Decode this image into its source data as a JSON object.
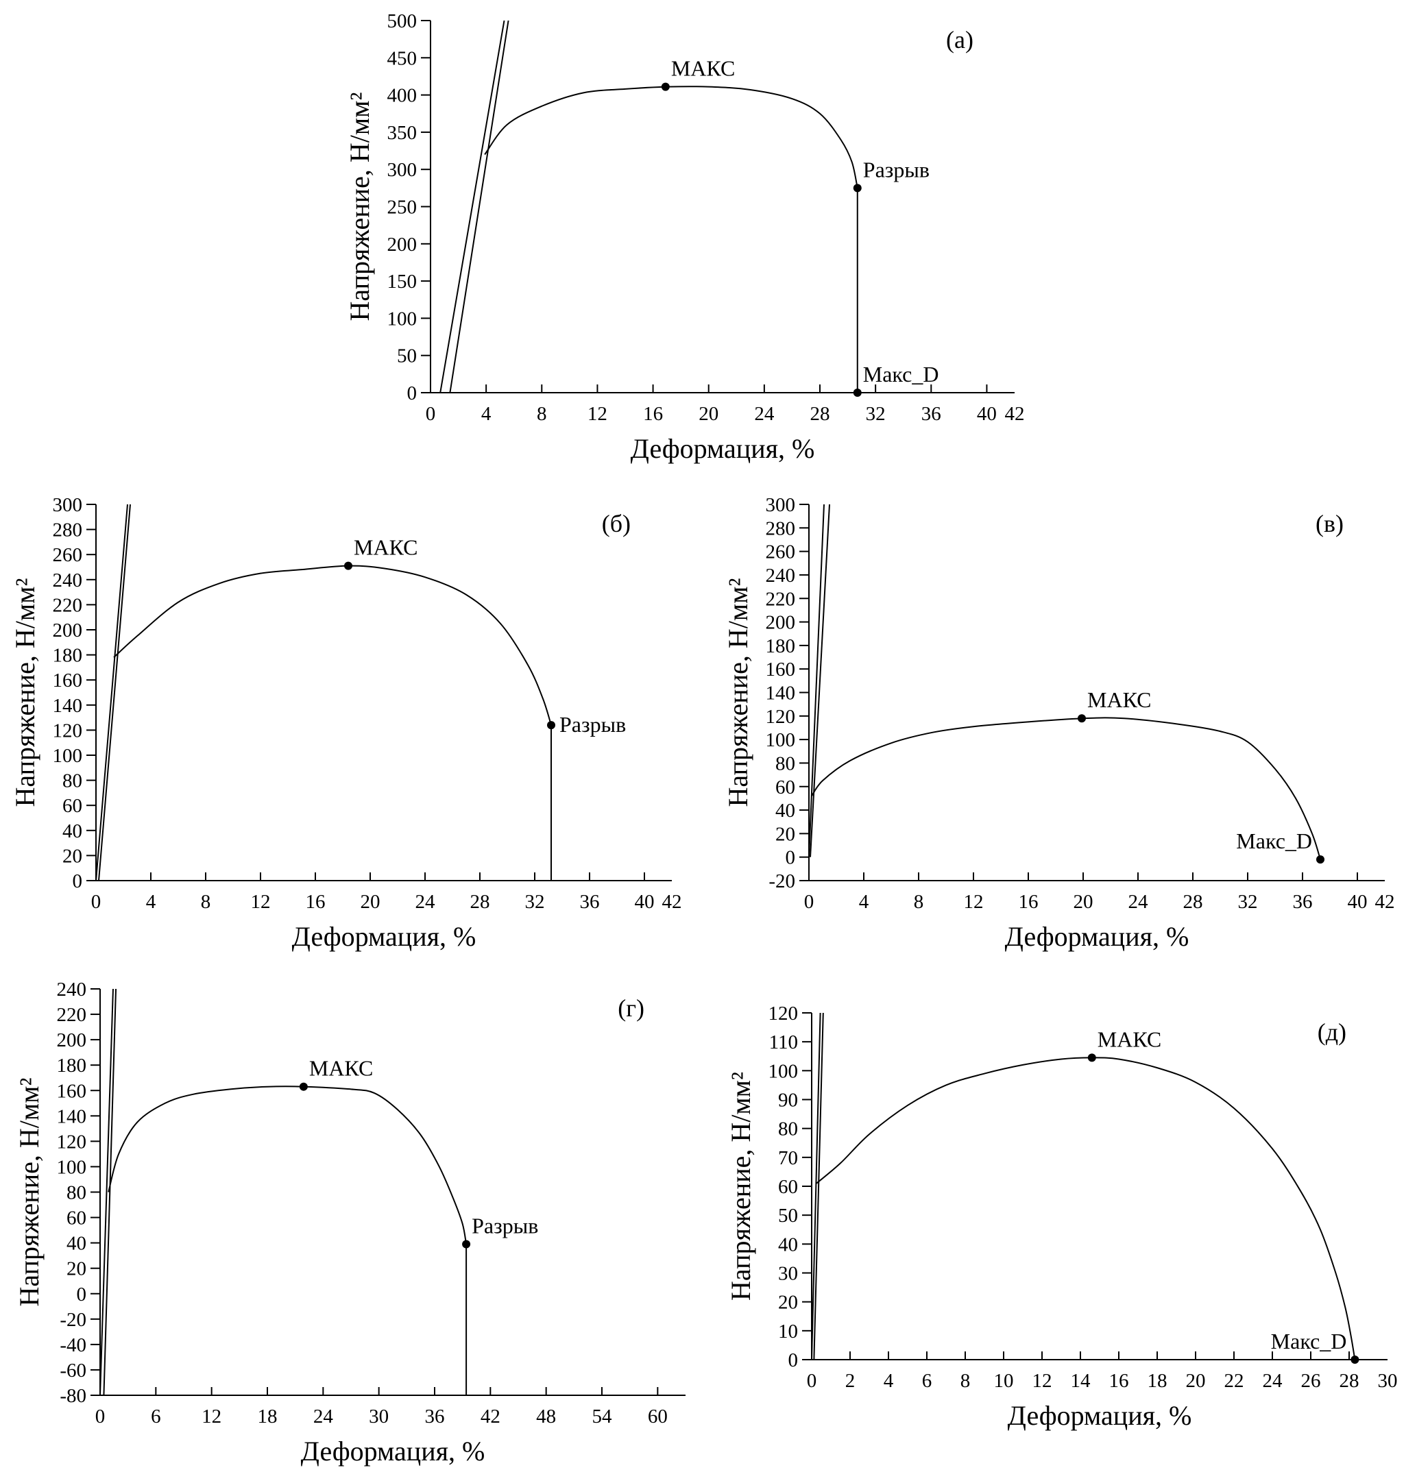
{
  "chart_data": [
    {
      "id": "a",
      "type": "line",
      "panel_label": "(a)",
      "xlabel": "Деформация, %",
      "ylabel": "Напряжение, Н/мм²",
      "xlim": [
        0,
        42
      ],
      "ylim": [
        0,
        500
      ],
      "xticks": [
        0,
        4,
        8,
        12,
        16,
        20,
        24,
        28,
        32,
        36,
        40,
        42
      ],
      "yticks": [
        0,
        50,
        100,
        150,
        200,
        250,
        300,
        350,
        400,
        450,
        500
      ],
      "grid": false,
      "elastic_lines": [
        [
          [
            0.7,
            0
          ],
          [
            5.3,
            500
          ]
        ],
        [
          [
            1.4,
            0
          ],
          [
            5.6,
            500
          ]
        ]
      ],
      "curve": [
        [
          3.9,
          320
        ],
        [
          5.5,
          360
        ],
        [
          8,
          385
        ],
        [
          11,
          403
        ],
        [
          14,
          408
        ],
        [
          17,
          411
        ],
        [
          20,
          411
        ],
        [
          23,
          407
        ],
        [
          26,
          395
        ],
        [
          28,
          375
        ],
        [
          29.5,
          340
        ],
        [
          30.3,
          310
        ],
        [
          30.7,
          275
        ]
      ],
      "drop": [
        [
          30.7,
          275
        ],
        [
          30.7,
          0
        ]
      ],
      "points": [
        {
          "x": 16.9,
          "y": 411,
          "label": "МАКС",
          "pos": "above-right"
        },
        {
          "x": 30.7,
          "y": 275,
          "label": "Разрыв",
          "pos": "above-right"
        },
        {
          "x": 30.7,
          "y": 0,
          "label": "Макс_D",
          "pos": "above-right"
        }
      ]
    },
    {
      "id": "b",
      "type": "line",
      "panel_label": "(б)",
      "xlabel": "Деформация, %",
      "ylabel": "Напряжение, Н/мм²",
      "xlim": [
        0,
        42
      ],
      "ylim": [
        0,
        300
      ],
      "xticks": [
        0,
        4,
        8,
        12,
        16,
        20,
        24,
        28,
        32,
        36,
        40,
        42
      ],
      "yticks": [
        0,
        20,
        40,
        60,
        80,
        100,
        120,
        140,
        160,
        180,
        200,
        220,
        240,
        260,
        280,
        300
      ],
      "grid": false,
      "elastic_lines": [
        [
          [
            0,
            0
          ],
          [
            2.3,
            300
          ]
        ],
        [
          [
            0.2,
            0
          ],
          [
            2.5,
            300
          ]
        ]
      ],
      "curve": [
        [
          1.3,
          178
        ],
        [
          3,
          195
        ],
        [
          6,
          222
        ],
        [
          9,
          237
        ],
        [
          12,
          245
        ],
        [
          15,
          248
        ],
        [
          18.4,
          251
        ],
        [
          21,
          249
        ],
        [
          24,
          242
        ],
        [
          27,
          228
        ],
        [
          29.5,
          205
        ],
        [
          31.5,
          172
        ],
        [
          32.6,
          145
        ],
        [
          33.2,
          124
        ]
      ],
      "drop": [
        [
          33.2,
          124
        ],
        [
          33.2,
          0
        ]
      ],
      "points": [
        {
          "x": 18.4,
          "y": 251,
          "label": "МАКС",
          "pos": "above-right"
        },
        {
          "x": 33.2,
          "y": 124,
          "label": "Разрыв",
          "pos": "right"
        }
      ]
    },
    {
      "id": "v",
      "type": "line",
      "panel_label": "(в)",
      "xlabel": "Деформация, %",
      "ylabel": "Напряжение, Н/мм²",
      "xlim": [
        0,
        42
      ],
      "ylim": [
        -20,
        300
      ],
      "xticks": [
        0,
        4,
        8,
        12,
        16,
        20,
        24,
        28,
        32,
        36,
        40,
        42
      ],
      "yticks": [
        -20,
        0,
        20,
        40,
        60,
        80,
        100,
        120,
        140,
        160,
        180,
        200,
        220,
        240,
        260,
        280,
        300
      ],
      "grid": false,
      "elastic_lines": [
        [
          [
            0,
            0
          ],
          [
            1.1,
            300
          ]
        ],
        [
          [
            0.1,
            0
          ],
          [
            1.5,
            300
          ]
        ]
      ],
      "curve": [
        [
          0.2,
          52
        ],
        [
          1,
          65
        ],
        [
          3,
          82
        ],
        [
          6,
          97
        ],
        [
          9,
          106
        ],
        [
          12,
          111
        ],
        [
          16,
          115
        ],
        [
          20,
          118
        ],
        [
          23,
          118
        ],
        [
          27,
          113
        ],
        [
          30,
          107
        ],
        [
          32,
          98
        ],
        [
          34,
          75
        ],
        [
          35.5,
          50
        ],
        [
          36.7,
          20
        ],
        [
          37.3,
          -2
        ]
      ],
      "drop": [],
      "points": [
        {
          "x": 19.9,
          "y": 118,
          "label": "МАКС",
          "pos": "above-right"
        },
        {
          "x": 37.3,
          "y": -2,
          "label": "Макс_D",
          "pos": "above-left"
        }
      ]
    },
    {
      "id": "g",
      "type": "line",
      "panel_label": "(г)",
      "xlabel": "Деформация, %",
      "ylabel": "Напряжение, Н/мм²",
      "xlim": [
        0,
        63
      ],
      "ylim": [
        -80,
        240
      ],
      "xticks": [
        0,
        6,
        12,
        18,
        24,
        30,
        36,
        42,
        48,
        54,
        60
      ],
      "yticks": [
        -80,
        -60,
        -40,
        -20,
        0,
        20,
        40,
        60,
        80,
        100,
        120,
        140,
        160,
        180,
        200,
        220,
        240
      ],
      "grid": false,
      "elastic_lines": [
        [
          [
            0,
            -80
          ],
          [
            1.4,
            240
          ]
        ],
        [
          [
            0.4,
            -80
          ],
          [
            1.7,
            240
          ]
        ]
      ],
      "curve": [
        [
          0.9,
          80
        ],
        [
          2,
          110
        ],
        [
          4,
          135
        ],
        [
          7,
          150
        ],
        [
          10,
          157
        ],
        [
          14,
          161
        ],
        [
          18,
          163
        ],
        [
          22,
          163
        ],
        [
          27,
          161
        ],
        [
          29.5,
          158
        ],
        [
          32,
          145
        ],
        [
          34.5,
          125
        ],
        [
          36.5,
          100
        ],
        [
          38,
          75
        ],
        [
          39,
          55
        ],
        [
          39.4,
          39
        ]
      ],
      "drop": [
        [
          39.4,
          39
        ],
        [
          39.4,
          -80
        ]
      ],
      "points": [
        {
          "x": 21.9,
          "y": 163,
          "label": "МАКС",
          "pos": "above-right"
        },
        {
          "x": 39.4,
          "y": 39,
          "label": "Разрыв",
          "pos": "above-right"
        }
      ]
    },
    {
      "id": "d",
      "type": "line",
      "panel_label": "(д)",
      "xlabel": "Деформация, %",
      "ylabel": "Напряжение, Н/мм²",
      "xlim": [
        0,
        30
      ],
      "ylim": [
        0,
        120
      ],
      "xticks": [
        0,
        2,
        4,
        6,
        8,
        10,
        12,
        14,
        16,
        18,
        20,
        22,
        24,
        26,
        28,
        30
      ],
      "yticks": [
        0,
        10,
        20,
        30,
        40,
        50,
        60,
        70,
        80,
        90,
        100,
        110,
        120
      ],
      "grid": false,
      "elastic_lines": [
        [
          [
            0,
            0
          ],
          [
            0.45,
            120
          ]
        ],
        [
          [
            0.12,
            0
          ],
          [
            0.6,
            120
          ]
        ]
      ],
      "curve": [
        [
          0.25,
          61
        ],
        [
          1.5,
          68
        ],
        [
          3,
          78
        ],
        [
          5,
          88
        ],
        [
          7,
          95
        ],
        [
          9,
          99
        ],
        [
          11,
          102
        ],
        [
          13,
          104
        ],
        [
          14.6,
          104.5
        ],
        [
          16,
          104
        ],
        [
          18,
          101
        ],
        [
          20,
          96
        ],
        [
          22,
          87
        ],
        [
          24,
          73
        ],
        [
          25.5,
          58
        ],
        [
          26.5,
          45
        ],
        [
          27.3,
          30
        ],
        [
          27.8,
          18
        ],
        [
          28.1,
          8
        ],
        [
          28.3,
          0
        ]
      ],
      "drop": [],
      "points": [
        {
          "x": 14.6,
          "y": 104.5,
          "label": "МАКС",
          "pos": "above-right"
        },
        {
          "x": 28.3,
          "y": 0,
          "label": "Макс_D",
          "pos": "above-left"
        }
      ]
    }
  ]
}
